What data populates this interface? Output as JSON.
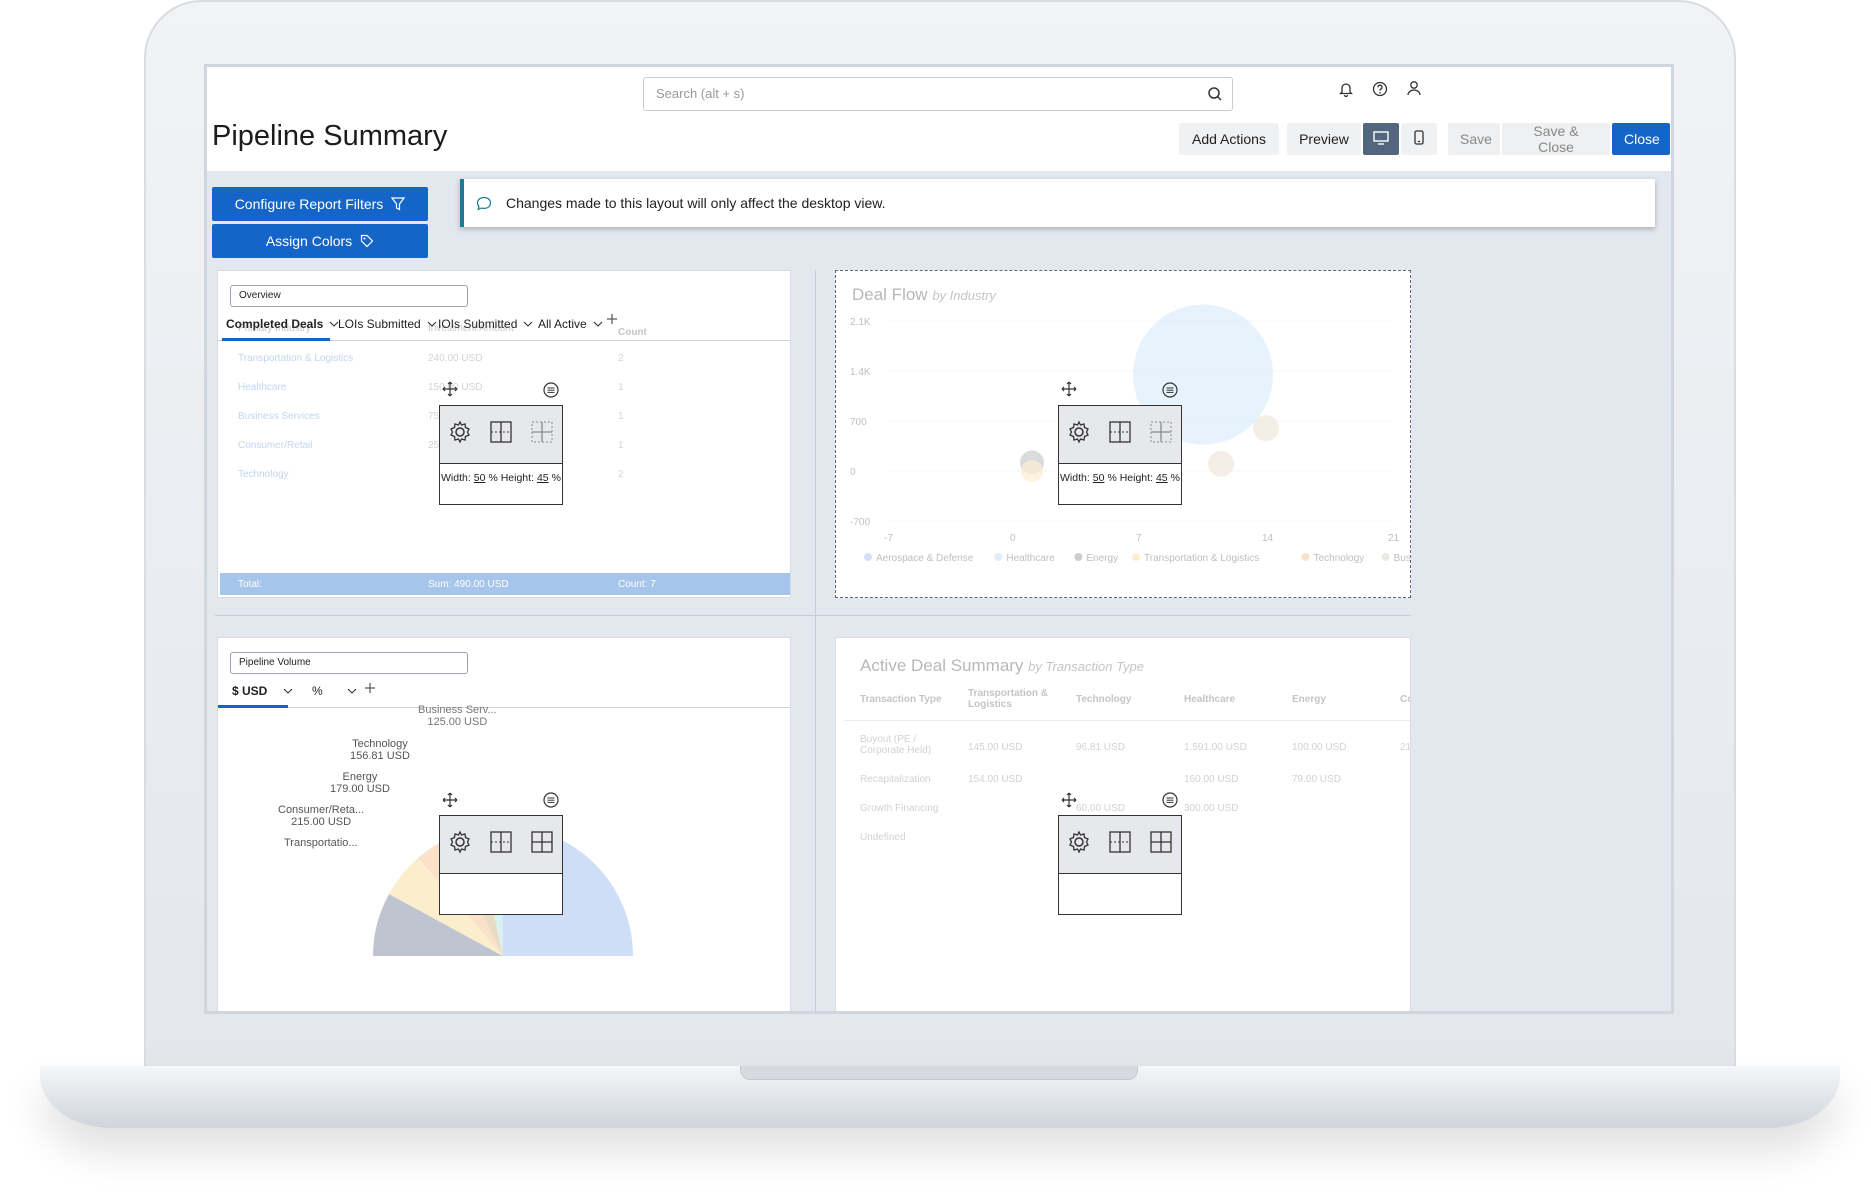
{
  "header": {
    "search_placeholder": "Search (alt + s)",
    "page_title": "Pipeline Summary",
    "buttons": {
      "add_actions": "Add Actions",
      "preview": "Preview",
      "save": "Save",
      "save_close": "Save & Close",
      "close": "Close"
    }
  },
  "left_actions": {
    "configure": "Configure Report Filters",
    "assign_colors": "Assign Colors"
  },
  "banner": {
    "text": "Changes made to this layout will only affect the desktop view."
  },
  "overview_panel": {
    "name": "Overview",
    "tabs": [
      "Completed Deals",
      "LOIs Submitted",
      "IOIs Submitted",
      "All Active"
    ],
    "ghost_headers": [
      "Primary Industry",
      "Investment Amount",
      "Count"
    ],
    "rows": [
      {
        "industry": "Transportation & Logistics",
        "amount": "240.00 USD",
        "count": "2"
      },
      {
        "industry": "Healthcare",
        "amount": "150.00 USD",
        "count": "1"
      },
      {
        "industry": "Business Services",
        "amount": "75.00 USD",
        "count": "1"
      },
      {
        "industry": "Consumer/Retail",
        "amount": "25.00 USD",
        "count": "1"
      },
      {
        "industry": "Technology",
        "amount": "",
        "count": "2"
      }
    ],
    "footer": {
      "total": "Total:",
      "sum": "Sum: 490.00 USD",
      "count": "Count: 7"
    },
    "overlay": {
      "width_label": "Width:",
      "width": "50",
      "height_label": "% Height:",
      "height": "45",
      "unit": "%"
    }
  },
  "deal_flow_panel": {
    "title": "Deal Flow",
    "subtitle": "by Industry",
    "y_ticks": [
      "2.1K",
      "1.4K",
      "700",
      "0",
      "-700"
    ],
    "x_ticks": [
      "-7",
      "0",
      "7",
      "14",
      "21"
    ],
    "legend": [
      "Aerospace & Defense",
      "Healthcare",
      "Energy",
      "Transportation & Logistics",
      "Technology",
      "Business Services"
    ],
    "overlay": {
      "width_label": "Width:",
      "width": "50",
      "height_label": "% Height:",
      "height": "45",
      "unit": "%"
    }
  },
  "volume_panel": {
    "name": "Pipeline Volume",
    "tabs": [
      "$ USD",
      "%"
    ],
    "labels": [
      {
        "name": "Business Serv...",
        "value": "125.00 USD"
      },
      {
        "name": "Technology",
        "value": "156.81 USD"
      },
      {
        "name": "Energy",
        "value": "179.00 USD"
      },
      {
        "name": "Consumer/Reta...",
        "value": "215.00 USD"
      },
      {
        "name": "Transportatio...",
        "value": ""
      }
    ]
  },
  "active_panel": {
    "title": "Active Deal Summary",
    "subtitle": "by Transaction Type",
    "headers": [
      "Transaction Type",
      "Transportation & Logistics",
      "Technology",
      "Healthcare",
      "Energy",
      "Co"
    ],
    "rows": [
      {
        "type": "Buyout (PE / Corporate Held)",
        "c1": "145.00 USD",
        "c2": "96.81 USD",
        "c3": "1,591.00 USD",
        "c4": "100.00 USD",
        "c5": "21"
      },
      {
        "type": "Recapitalization",
        "c1": "154.00 USD",
        "c2": "",
        "c3": "160.00 USD",
        "c4": "79.00 USD",
        "c5": ""
      },
      {
        "type": "Growth Financing",
        "c1": "",
        "c2": "60.00 USD",
        "c3": "300.00 USD",
        "c4": "",
        "c5": ""
      },
      {
        "type": "Undefined",
        "c1": "",
        "c2": "",
        "c3": "",
        "c4": "",
        "c5": ""
      }
    ]
  },
  "colors": {
    "primary": "#1565c8",
    "banner_accent": "#1f7a95",
    "canvas": "#e3e7ee"
  },
  "chart_data": {
    "type": "scatter",
    "title": "Deal Flow",
    "subtitle": "by Industry",
    "xlim": [
      -7,
      21
    ],
    "ylim": [
      -700,
      2100
    ],
    "series": [
      {
        "name": "Aerospace & Defense",
        "x": [
          6.5
        ],
        "y": [
          420
        ],
        "size": 20
      },
      {
        "name": "Healthcare",
        "x": [
          10.5
        ],
        "y": [
          1350
        ],
        "size": 70
      },
      {
        "name": "Energy",
        "x": [
          1
        ],
        "y": [
          120
        ],
        "size": 12
      },
      {
        "name": "Transportation & Logistics",
        "x": [
          1
        ],
        "y": [
          0
        ],
        "size": 11
      },
      {
        "name": "Technology",
        "x": [
          4.5
        ],
        "y": [
          130
        ],
        "size": 15
      },
      {
        "name": "Business Services",
        "x": [
          11.5
        ],
        "y": [
          100
        ],
        "size": 13
      },
      {
        "name": "Business Services",
        "x": [
          14
        ],
        "y": [
          600
        ],
        "size": 13
      }
    ],
    "legend_position": "bottom"
  }
}
